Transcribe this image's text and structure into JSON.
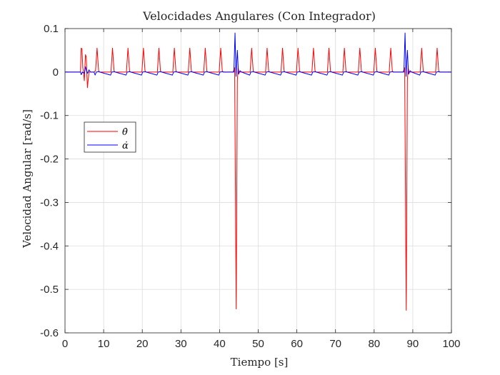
{
  "chart_data": {
    "type": "line",
    "title": "Velocidades Angulares (Con Integrador)",
    "xlabel": "Tiempo [s]",
    "ylabel": "Velocidad Angular [rad/s]",
    "xlim": [
      0,
      100
    ],
    "ylim": [
      -0.6,
      0.1
    ],
    "xticks": [
      0,
      10,
      20,
      30,
      40,
      50,
      60,
      70,
      80,
      90,
      100
    ],
    "yticks": [
      0.1,
      0,
      -0.1,
      -0.2,
      -0.3,
      -0.4,
      -0.5,
      -0.6
    ],
    "xtick_labels": [
      "0",
      "10",
      "20",
      "30",
      "40",
      "50",
      "60",
      "70",
      "80",
      "90",
      "100"
    ],
    "ytick_labels": [
      "0.1",
      "0",
      "-0.1",
      "-0.2",
      "-0.3",
      "-0.4",
      "-0.5",
      "-0.6"
    ],
    "grid": true,
    "legend": {
      "position": "upper-left"
    },
    "series": [
      {
        "name": "θ̇",
        "color": "#ff0000",
        "points": [
          [
            0,
            0
          ],
          [
            4.0,
            0
          ],
          [
            4.2,
            0.055
          ],
          [
            4.4,
            0.053
          ],
          [
            4.6,
            0.01
          ],
          [
            4.8,
            0
          ],
          [
            5.0,
            -0.02
          ],
          [
            5.3,
            0.04
          ],
          [
            5.5,
            0.035
          ],
          [
            5.8,
            -0.036
          ],
          [
            6.2,
            0.0
          ],
          [
            7.5,
            0
          ],
          [
            7.9,
            0.003
          ],
          [
            8.3,
            0.055
          ],
          [
            8.7,
            0.003
          ],
          [
            8.9,
            0
          ],
          [
            11.9,
            0
          ],
          [
            12.3,
            0.055
          ],
          [
            12.7,
            0.003
          ],
          [
            12.9,
            0
          ],
          [
            15.9,
            0
          ],
          [
            16.3,
            0.055
          ],
          [
            16.7,
            0.003
          ],
          [
            16.9,
            0
          ],
          [
            19.9,
            0
          ],
          [
            20.3,
            0.055
          ],
          [
            20.7,
            0.003
          ],
          [
            20.9,
            0
          ],
          [
            23.9,
            0
          ],
          [
            24.3,
            0.055
          ],
          [
            24.7,
            0.003
          ],
          [
            24.9,
            0
          ],
          [
            27.9,
            0
          ],
          [
            28.3,
            0.055
          ],
          [
            28.7,
            0.003
          ],
          [
            28.9,
            0
          ],
          [
            31.9,
            0
          ],
          [
            32.3,
            0.055
          ],
          [
            32.7,
            0.003
          ],
          [
            32.9,
            0
          ],
          [
            35.9,
            0
          ],
          [
            36.3,
            0.055
          ],
          [
            36.7,
            0.003
          ],
          [
            36.9,
            0
          ],
          [
            39.9,
            0
          ],
          [
            40.3,
            0.055
          ],
          [
            40.7,
            0.003
          ],
          [
            40.9,
            0
          ],
          [
            43.5,
            0
          ],
          [
            43.9,
            0.01
          ],
          [
            44.3,
            -0.545
          ],
          [
            44.6,
            -0.02
          ],
          [
            44.8,
            0.01
          ],
          [
            45.0,
            0
          ],
          [
            47.9,
            0
          ],
          [
            48.3,
            0.055
          ],
          [
            48.7,
            0.003
          ],
          [
            48.9,
            0
          ],
          [
            51.9,
            0
          ],
          [
            52.3,
            0.055
          ],
          [
            52.7,
            0.003
          ],
          [
            52.9,
            0
          ],
          [
            55.9,
            0
          ],
          [
            56.3,
            0.055
          ],
          [
            56.7,
            0.003
          ],
          [
            56.9,
            0
          ],
          [
            59.9,
            0
          ],
          [
            60.3,
            0.055
          ],
          [
            60.7,
            0.003
          ],
          [
            60.9,
            0
          ],
          [
            63.9,
            0
          ],
          [
            64.3,
            0.055
          ],
          [
            64.7,
            0.003
          ],
          [
            64.9,
            0
          ],
          [
            67.9,
            0
          ],
          [
            68.3,
            0.055
          ],
          [
            68.7,
            0.003
          ],
          [
            68.9,
            0
          ],
          [
            71.9,
            0
          ],
          [
            72.3,
            0.055
          ],
          [
            72.7,
            0.003
          ],
          [
            72.9,
            0
          ],
          [
            75.9,
            0
          ],
          [
            76.3,
            0.055
          ],
          [
            76.7,
            0.003
          ],
          [
            76.9,
            0
          ],
          [
            79.9,
            0
          ],
          [
            80.3,
            0.055
          ],
          [
            80.7,
            0.003
          ],
          [
            80.9,
            0
          ],
          [
            83.9,
            0
          ],
          [
            84.3,
            0.055
          ],
          [
            84.7,
            0.003
          ],
          [
            84.9,
            0
          ],
          [
            87.5,
            0
          ],
          [
            87.9,
            0.01
          ],
          [
            88.3,
            -0.548
          ],
          [
            88.6,
            -0.02
          ],
          [
            88.8,
            0.01
          ],
          [
            89.0,
            0
          ],
          [
            91.9,
            0
          ],
          [
            92.3,
            0.055
          ],
          [
            92.7,
            0.003
          ],
          [
            92.9,
            0
          ],
          [
            95.9,
            0
          ],
          [
            96.3,
            0.055
          ],
          [
            96.7,
            0.003
          ],
          [
            96.9,
            0
          ],
          [
            100,
            0
          ]
        ]
      },
      {
        "name": "α̇",
        "color": "#0000ff",
        "points": [
          [
            0,
            0
          ],
          [
            4.0,
            0
          ],
          [
            4.2,
            -0.006
          ],
          [
            4.5,
            0
          ],
          [
            5.0,
            -0.003
          ],
          [
            5.3,
            0.012
          ],
          [
            5.5,
            0.005
          ],
          [
            5.8,
            -0.003
          ],
          [
            6.2,
            0.005
          ],
          [
            6.6,
            0
          ],
          [
            7.5,
            0
          ],
          [
            7.8,
            -0.007
          ],
          [
            8.1,
            0
          ],
          [
            8.8,
            0.001
          ],
          [
            9.0,
            0
          ],
          [
            11.8,
            -0.007
          ],
          [
            12.1,
            0
          ],
          [
            12.8,
            0.001
          ],
          [
            13.0,
            0
          ],
          [
            15.8,
            -0.007
          ],
          [
            16.1,
            0
          ],
          [
            16.8,
            0.001
          ],
          [
            17.0,
            0
          ],
          [
            19.8,
            -0.007
          ],
          [
            20.1,
            0
          ],
          [
            20.8,
            0.001
          ],
          [
            21.0,
            0
          ],
          [
            23.8,
            -0.007
          ],
          [
            24.1,
            0
          ],
          [
            24.8,
            0.001
          ],
          [
            25.0,
            0
          ],
          [
            27.8,
            -0.007
          ],
          [
            28.1,
            0
          ],
          [
            28.8,
            0.001
          ],
          [
            29.0,
            0
          ],
          [
            31.8,
            -0.007
          ],
          [
            32.1,
            0
          ],
          [
            32.8,
            0.001
          ],
          [
            33.0,
            0
          ],
          [
            35.8,
            -0.007
          ],
          [
            36.1,
            0
          ],
          [
            36.8,
            0.001
          ],
          [
            37.0,
            0
          ],
          [
            39.8,
            -0.007
          ],
          [
            40.1,
            0
          ],
          [
            40.8,
            0.001
          ],
          [
            41.0,
            0
          ],
          [
            43.7,
            0
          ],
          [
            44.0,
            0.09
          ],
          [
            44.25,
            -0.01
          ],
          [
            44.6,
            0.05
          ],
          [
            44.9,
            -0.005
          ],
          [
            45.3,
            0.003
          ],
          [
            45.7,
            0
          ],
          [
            47.8,
            -0.007
          ],
          [
            48.1,
            0
          ],
          [
            48.8,
            0.001
          ],
          [
            49.0,
            0
          ],
          [
            51.8,
            -0.007
          ],
          [
            52.1,
            0
          ],
          [
            52.8,
            0.001
          ],
          [
            53.0,
            0
          ],
          [
            55.8,
            -0.007
          ],
          [
            56.1,
            0
          ],
          [
            56.8,
            0.001
          ],
          [
            57.0,
            0
          ],
          [
            59.8,
            -0.007
          ],
          [
            60.1,
            0
          ],
          [
            60.8,
            0.001
          ],
          [
            61.0,
            0
          ],
          [
            63.8,
            -0.007
          ],
          [
            64.1,
            0
          ],
          [
            64.8,
            0.001
          ],
          [
            65.0,
            0
          ],
          [
            67.8,
            -0.007
          ],
          [
            68.1,
            0
          ],
          [
            68.8,
            0.001
          ],
          [
            69.0,
            0
          ],
          [
            71.8,
            -0.007
          ],
          [
            72.1,
            0
          ],
          [
            72.8,
            0.001
          ],
          [
            73.0,
            0
          ],
          [
            75.8,
            -0.007
          ],
          [
            76.1,
            0
          ],
          [
            76.8,
            0.001
          ],
          [
            77.0,
            0
          ],
          [
            79.8,
            -0.007
          ],
          [
            80.1,
            0
          ],
          [
            80.8,
            0.001
          ],
          [
            81.0,
            0
          ],
          [
            83.8,
            -0.007
          ],
          [
            84.1,
            0
          ],
          [
            84.8,
            0.001
          ],
          [
            85.0,
            0
          ],
          [
            87.7,
            0
          ],
          [
            88.0,
            0.09
          ],
          [
            88.25,
            -0.01
          ],
          [
            88.6,
            0.05
          ],
          [
            88.9,
            -0.005
          ],
          [
            89.3,
            0.003
          ],
          [
            89.7,
            0
          ],
          [
            91.8,
            -0.007
          ],
          [
            92.1,
            0
          ],
          [
            92.8,
            0.001
          ],
          [
            93.0,
            0
          ],
          [
            95.8,
            -0.007
          ],
          [
            96.1,
            0
          ],
          [
            96.8,
            0.001
          ],
          [
            97.0,
            0
          ],
          [
            100,
            0
          ]
        ]
      }
    ]
  }
}
